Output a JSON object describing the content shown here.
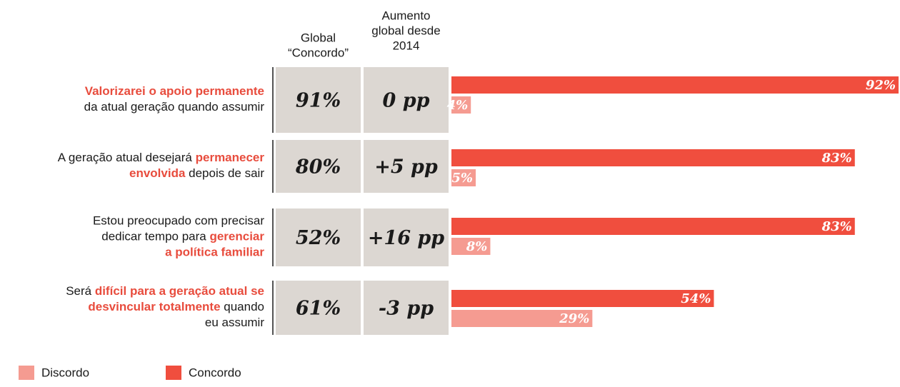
{
  "chart_data": {
    "type": "bar",
    "orientation": "horizontal",
    "column_headers": [
      [
        "Global",
        "“Concordo”"
      ],
      [
        "Aumento",
        "global desde",
        "2014"
      ]
    ],
    "categories": [
      [
        [
          {
            "text": "Valorizarei o apoio permanente",
            "highlight": true
          }
        ],
        [
          {
            "text": "da atual geração quando assumir",
            "highlight": false
          }
        ]
      ],
      [
        [
          {
            "text": "A geração atual desejará ",
            "highlight": false
          },
          {
            "text": "permanecer",
            "highlight": true
          }
        ],
        [
          {
            "text": "envolvida",
            "highlight": true
          },
          {
            "text": " depois de sair",
            "highlight": false
          }
        ]
      ],
      [
        [
          {
            "text": "Estou preocupado com precisar",
            "highlight": false
          }
        ],
        [
          {
            "text": "dedicar tempo para ",
            "highlight": false
          },
          {
            "text": "gerenciar",
            "highlight": true
          }
        ],
        [
          {
            "text": "a política familiar",
            "highlight": true
          }
        ]
      ],
      [
        [
          {
            "text": "Será ",
            "highlight": false
          },
          {
            "text": "difícil para a geração atual se",
            "highlight": true
          }
        ],
        [
          {
            "text": "desvincular totalmente",
            "highlight": true
          },
          {
            "text": " quando",
            "highlight": false
          }
        ],
        [
          {
            "text": "eu assumir",
            "highlight": false
          }
        ]
      ]
    ],
    "highlight_color": "#e84c3d",
    "table_rows": [
      [
        "91%",
        "0 pp"
      ],
      [
        "80%",
        "+5 pp"
      ],
      [
        "52%",
        "+16 pp"
      ],
      [
        "61%",
        "-3 pp"
      ]
    ],
    "series": [
      {
        "name": "Concordo",
        "color": "#f04e3e",
        "values": [
          92,
          83,
          83,
          54
        ],
        "value_labels": [
          "92%",
          "83%",
          "83%",
          "54%"
        ]
      },
      {
        "name": "Discordo",
        "color": "#f59b91",
        "values": [
          4,
          5,
          8,
          29
        ],
        "value_labels": [
          "4%",
          "5%",
          "8%",
          "29%"
        ]
      }
    ],
    "xlim": [
      0,
      92
    ]
  }
}
